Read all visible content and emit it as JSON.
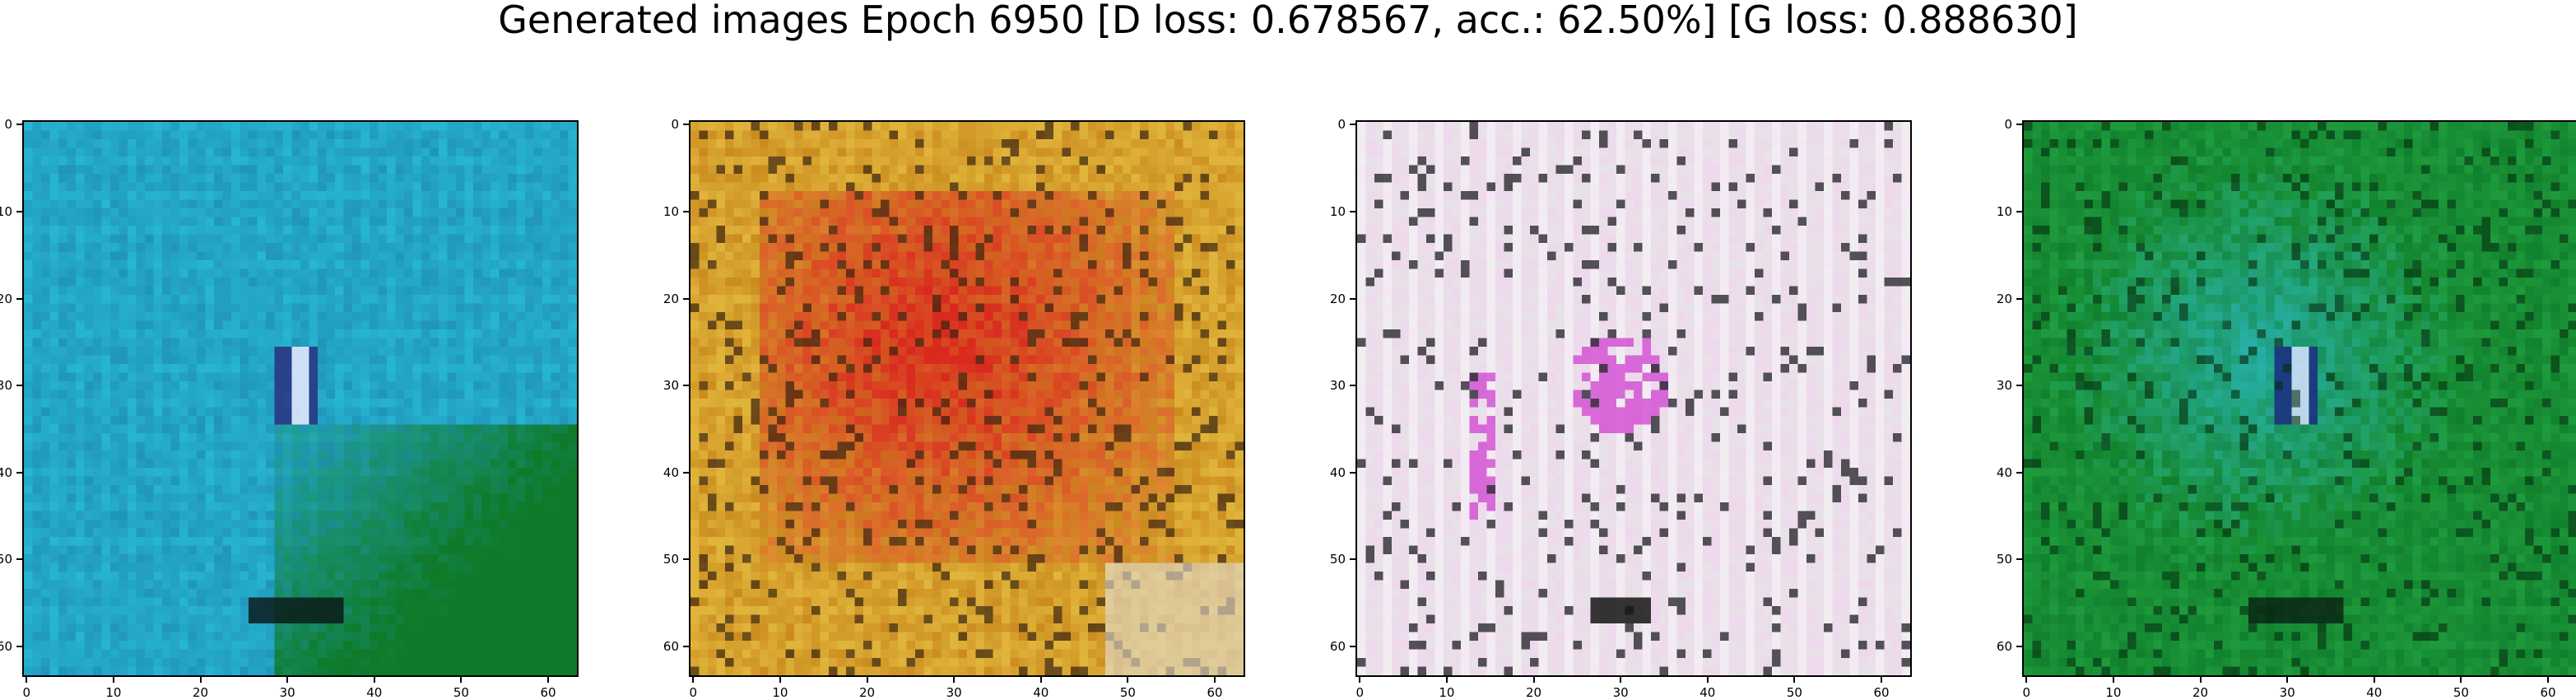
{
  "figure": {
    "title": "Generated images Epoch 6950 [D loss: 0.678567, acc.: 62.50%] [G loss: 0.888630]"
  },
  "axes": {
    "ticks": [
      "0",
      "10",
      "20",
      "30",
      "40",
      "50",
      "60"
    ],
    "tick_values": [
      0,
      10,
      20,
      30,
      40,
      50,
      60
    ],
    "data_range": [
      -0.5,
      63.5
    ]
  },
  "panels": [
    {
      "dominant_colors": [
        "#1f8fb8",
        "#27b6d2",
        "#0f7a2a",
        "#2a2f80"
      ],
      "style": "blue-cyan with green lower-right and dark blue-white blot near center"
    },
    {
      "dominant_colors": [
        "#c8861c",
        "#e0b43a",
        "#d92a1e",
        "#3a2410"
      ],
      "style": "orange-yellow border with red central texture"
    },
    {
      "dominant_colors": [
        "#e8e2e8",
        "#f0d6ee",
        "#d24ad2",
        "#2b2a30"
      ],
      "style": "light pinkish white with magenta and dark specks"
    },
    {
      "dominant_colors": [
        "#0f7d2b",
        "#1e9a3c",
        "#2ab6c8",
        "#1a2a80"
      ],
      "style": "green with cyan center and dark blue blot"
    }
  ]
}
